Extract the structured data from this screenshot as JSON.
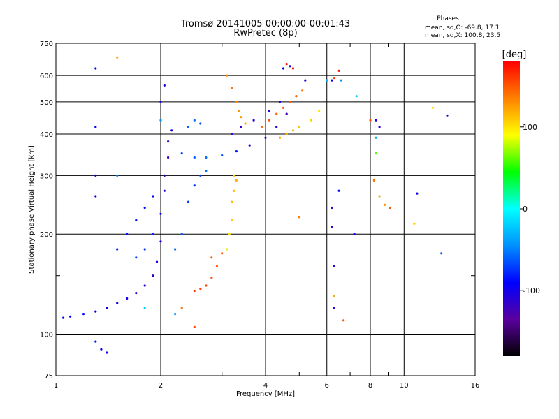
{
  "chart_data": {
    "type": "scatter",
    "title": "Tromsø 20141005 00:00:00-00:01:43",
    "subtitle": "RwPretec (8p)",
    "xlabel": "Frequency [MHz]",
    "ylabel": "Stationary phase Virtual Height [km]",
    "x_scale": "log",
    "y_scale": "log",
    "xlim": [
      1,
      16
    ],
    "ylim": [
      75,
      750
    ],
    "x_ticks": [
      1,
      2,
      4,
      6,
      8,
      10,
      16
    ],
    "x_minor_ticks": [
      3,
      5,
      7,
      9
    ],
    "y_ticks": [
      75,
      100,
      200,
      300,
      400,
      500,
      600,
      750
    ],
    "y_minor_ticks": [
      150
    ],
    "grid": true,
    "stats": {
      "title": "Phases",
      "line_o": "mean, sd,O: -69.8, 17.1",
      "line_x": "mean, sd,X: 100.8, 23.5"
    },
    "colorbar": {
      "label": "[deg]",
      "range": [
        -180,
        180
      ],
      "ticks": [
        100,
        0,
        -100
      ],
      "colors": [
        "#000000",
        "#5a00a0",
        "#0000ff",
        "#0090ff",
        "#00ffff",
        "#00ff00",
        "#ffff00",
        "#ff8000",
        "#ff0000"
      ]
    },
    "series": [
      {
        "points": [
          [
            1.05,
            112,
            -90
          ],
          [
            1.1,
            113,
            -88
          ],
          [
            1.2,
            115,
            -85
          ],
          [
            1.3,
            117,
            -92
          ],
          [
            1.4,
            120,
            -95
          ],
          [
            1.5,
            124,
            -98
          ],
          [
            1.6,
            128,
            -100
          ],
          [
            1.7,
            133,
            -104
          ],
          [
            1.8,
            140,
            -108
          ],
          [
            1.9,
            150,
            -110
          ],
          [
            1.95,
            165,
            -105
          ],
          [
            2.0,
            190,
            -100
          ],
          [
            2.0,
            230,
            -95
          ],
          [
            2.05,
            270,
            -110
          ],
          [
            2.05,
            300,
            -115
          ],
          [
            2.1,
            340,
            -118
          ],
          [
            2.1,
            380,
            -120
          ],
          [
            2.15,
            410,
            -112
          ],
          [
            2.0,
            500,
            -105
          ],
          [
            2.05,
            560,
            -108
          ],
          [
            2.3,
            350,
            -70
          ],
          [
            2.5,
            340,
            -60
          ],
          [
            2.7,
            340,
            -55
          ],
          [
            3.0,
            345,
            -65
          ],
          [
            3.3,
            355,
            -80
          ],
          [
            3.6,
            370,
            -100
          ],
          [
            4.0,
            390,
            -110
          ],
          [
            4.3,
            420,
            -115
          ],
          [
            4.6,
            460,
            -120
          ],
          [
            4.9,
            520,
            -118
          ],
          [
            5.2,
            580,
            -110
          ],
          [
            4.5,
            630,
            -95
          ],
          [
            4.7,
            640,
            -105
          ],
          [
            3.2,
            400,
            -120
          ],
          [
            3.4,
            420,
            -115
          ],
          [
            3.7,
            440,
            -112
          ],
          [
            4.1,
            470,
            -110
          ],
          [
            4.4,
            500,
            -108
          ],
          [
            1.5,
            180,
            -80
          ],
          [
            1.6,
            200,
            -85
          ],
          [
            1.7,
            220,
            -90
          ],
          [
            1.8,
            240,
            -88
          ],
          [
            1.9,
            260,
            -92
          ],
          [
            1.7,
            170,
            -70
          ],
          [
            1.8,
            180,
            -75
          ],
          [
            1.9,
            200,
            -78
          ],
          [
            2.2,
            180,
            -60
          ],
          [
            2.3,
            200,
            -65
          ],
          [
            2.4,
            250,
            -70
          ],
          [
            2.5,
            280,
            -75
          ],
          [
            2.6,
            300,
            -68
          ],
          [
            2.4,
            420,
            -60
          ],
          [
            2.5,
            440,
            -55
          ],
          [
            2.6,
            430,
            -60
          ],
          [
            1.3,
            630,
            -85
          ],
          [
            1.3,
            420,
            -90
          ],
          [
            1.3,
            300,
            -88
          ],
          [
            1.3,
            260,
            -92
          ],
          [
            1.3,
            95,
            -80
          ],
          [
            1.35,
            90,
            -95
          ],
          [
            1.4,
            88,
            -100
          ],
          [
            6.2,
            240,
            -110
          ],
          [
            6.2,
            210,
            -115
          ],
          [
            6.3,
            160,
            -112
          ],
          [
            6.3,
            120,
            -108
          ],
          [
            6.5,
            270,
            -95
          ],
          [
            7.2,
            200,
            -100
          ],
          [
            8.3,
            440,
            -105
          ],
          [
            8.5,
            420,
            -110
          ],
          [
            13.3,
            455,
            -120
          ],
          [
            10.9,
            265,
            -100
          ],
          [
            12.8,
            175,
            -60
          ],
          [
            6.2,
            580,
            -100
          ]
        ]
      },
      {
        "points": [
          [
            3.1,
            180,
            100
          ],
          [
            3.15,
            200,
            105
          ],
          [
            3.2,
            220,
            110
          ],
          [
            3.2,
            250,
            112
          ],
          [
            3.25,
            270,
            115
          ],
          [
            3.3,
            290,
            118
          ],
          [
            3.25,
            300,
            110
          ],
          [
            3.1,
            600,
            130
          ],
          [
            3.2,
            550,
            140
          ],
          [
            3.3,
            500,
            135
          ],
          [
            3.35,
            470,
            128
          ],
          [
            3.4,
            450,
            125
          ],
          [
            3.5,
            430,
            120
          ],
          [
            3.9,
            420,
            140
          ],
          [
            4.1,
            440,
            150
          ],
          [
            4.3,
            460,
            145
          ],
          [
            4.5,
            480,
            150
          ],
          [
            4.7,
            500,
            148
          ],
          [
            4.9,
            520,
            140
          ],
          [
            5.1,
            540,
            138
          ],
          [
            4.4,
            390,
            120
          ],
          [
            4.6,
            400,
            118
          ],
          [
            4.8,
            410,
            115
          ],
          [
            5.0,
            420,
            112
          ],
          [
            5.4,
            440,
            105
          ],
          [
            5.7,
            470,
            100
          ],
          [
            2.5,
            135,
            160
          ],
          [
            2.6,
            137,
            158
          ],
          [
            2.7,
            140,
            155
          ],
          [
            2.8,
            148,
            150
          ],
          [
            2.9,
            160,
            148
          ],
          [
            3.0,
            175,
            150
          ],
          [
            2.8,
            170,
            145
          ],
          [
            4.6,
            650,
            175
          ],
          [
            4.8,
            630,
            170
          ],
          [
            6.5,
            620,
            170
          ],
          [
            6.3,
            590,
            160
          ],
          [
            8.0,
            440,
            150
          ],
          [
            8.2,
            290,
            140
          ],
          [
            8.5,
            260,
            120
          ],
          [
            8.8,
            245,
            130
          ],
          [
            9.1,
            240,
            150
          ],
          [
            10.7,
            215,
            110
          ],
          [
            12.1,
            480,
            105
          ],
          [
            5.0,
            225,
            135
          ],
          [
            6.3,
            130,
            120
          ],
          [
            6.7,
            110,
            150
          ],
          [
            1.5,
            680,
            120
          ],
          [
            2.3,
            120,
            140
          ],
          [
            2.5,
            105,
            155
          ]
        ]
      },
      {
        "points": [
          [
            1.8,
            120,
            -20
          ],
          [
            2.2,
            115,
            -40
          ],
          [
            6.0,
            580,
            -30
          ],
          [
            7.3,
            520,
            -20
          ],
          [
            8.3,
            390,
            -35
          ],
          [
            8.3,
            350,
            60
          ],
          [
            6.6,
            580,
            -40
          ],
          [
            1.5,
            300,
            -50
          ],
          [
            2.0,
            440,
            -45
          ],
          [
            2.7,
            310,
            -55
          ]
        ]
      }
    ]
  }
}
